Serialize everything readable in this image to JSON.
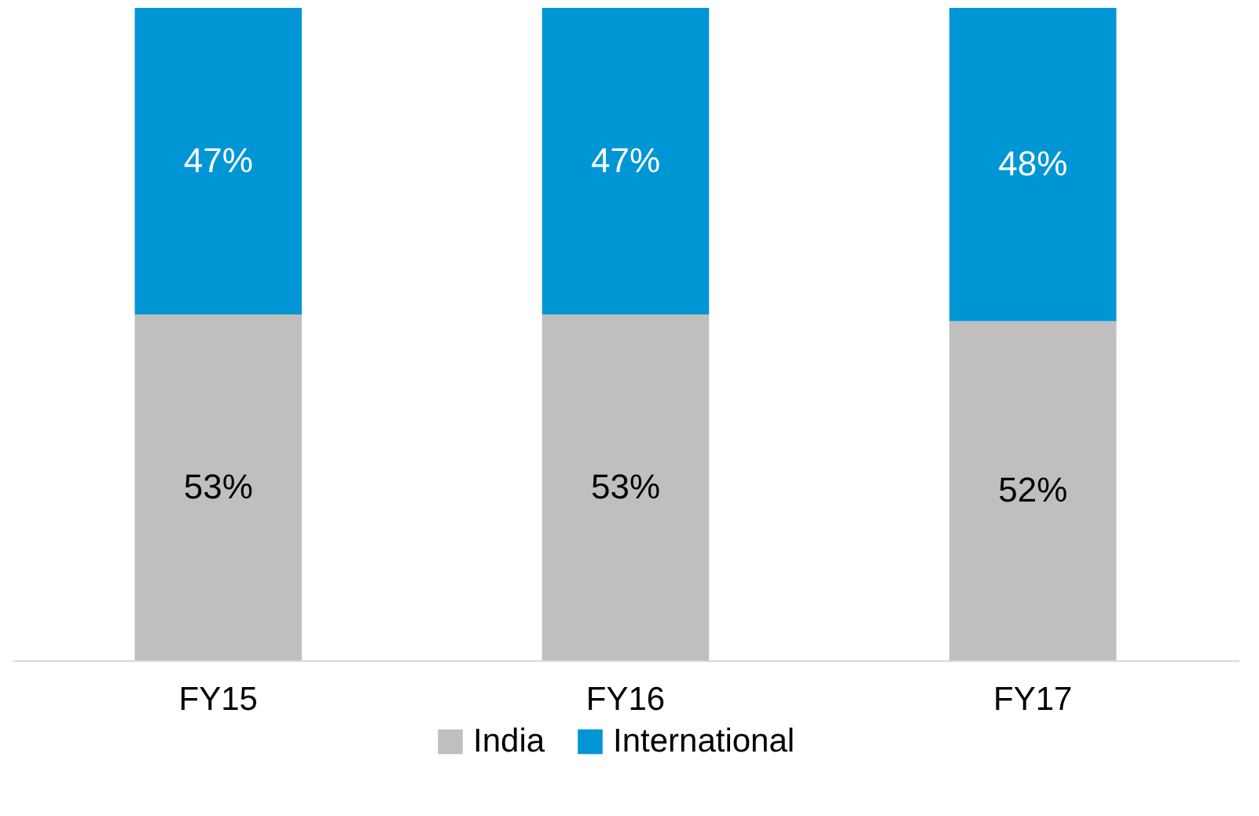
{
  "chart_data": {
    "type": "bar",
    "stacked": true,
    "legend": "bottom",
    "grid": false,
    "categories": [
      "FY15",
      "FY16",
      "FY17"
    ],
    "series": [
      {
        "name": "India",
        "color": "#bfbfbf",
        "values": [
          53,
          53,
          52
        ],
        "value_labels": [
          "53%",
          "53%",
          "52%"
        ]
      },
      {
        "name": "International",
        "color": "#0096d6",
        "values": [
          47,
          47,
          48
        ],
        "value_labels": [
          "47%",
          "47%",
          "48%"
        ]
      }
    ]
  }
}
